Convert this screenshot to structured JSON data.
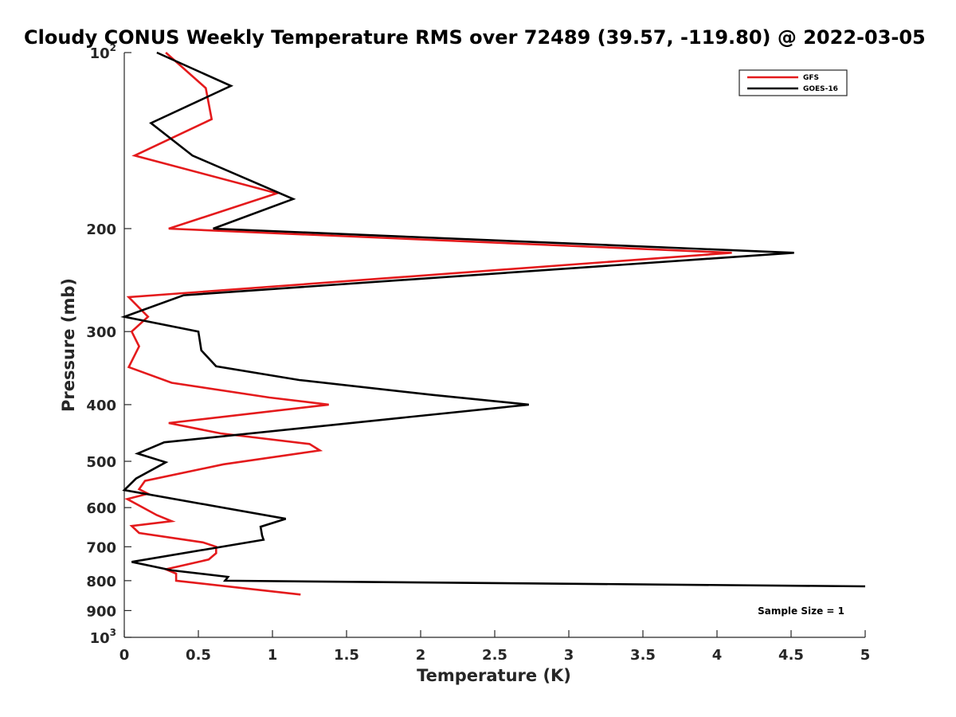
{
  "chart_data": {
    "type": "line",
    "title": "Cloudy CONUS Weekly Temperature RMS over 72489 (39.57, -119.80) @ 2022-03-05",
    "xlabel": "Temperature (K)",
    "ylabel": "Pressure (mb)",
    "xlim": [
      0,
      5
    ],
    "ylim": [
      100,
      1000
    ],
    "yscale": "log",
    "y_reversed": true,
    "x_ticks": [
      {
        "value": 0,
        "label": "0"
      },
      {
        "value": 0.5,
        "label": "0.5"
      },
      {
        "value": 1,
        "label": "1"
      },
      {
        "value": 1.5,
        "label": "1.5"
      },
      {
        "value": 2,
        "label": "2"
      },
      {
        "value": 2.5,
        "label": "2.5"
      },
      {
        "value": 3,
        "label": "3"
      },
      {
        "value": 3.5,
        "label": "3.5"
      },
      {
        "value": 4,
        "label": "4"
      },
      {
        "value": 4.5,
        "label": "4.5"
      },
      {
        "value": 5,
        "label": "5"
      }
    ],
    "y_ticks": [
      {
        "value": 100,
        "base": "10",
        "exp": "2"
      },
      {
        "value": 200,
        "label": "200"
      },
      {
        "value": 300,
        "label": "300"
      },
      {
        "value": 400,
        "label": "400"
      },
      {
        "value": 500,
        "label": "500"
      },
      {
        "value": 600,
        "label": "600"
      },
      {
        "value": 700,
        "label": "700"
      },
      {
        "value": 800,
        "label": "800"
      },
      {
        "value": 900,
        "label": "900"
      },
      {
        "value": 1000,
        "base": "10",
        "exp": "3"
      }
    ],
    "grid": false,
    "legend_position": "top-right",
    "series": [
      {
        "name": "GFS",
        "color": "#e41a1c",
        "points": [
          [
            0.28,
            100
          ],
          [
            0.55,
            115
          ],
          [
            0.59,
            130
          ],
          [
            0.07,
            150
          ],
          [
            1.03,
            174
          ],
          [
            0.3,
            200
          ],
          [
            4.1,
            220
          ],
          [
            0.03,
            262
          ],
          [
            0.16,
            283
          ],
          [
            0.05,
            300
          ],
          [
            0.1,
            318
          ],
          [
            0.03,
            345
          ],
          [
            0.32,
            367
          ],
          [
            0.98,
            389
          ],
          [
            1.38,
            400
          ],
          [
            0.3,
            430
          ],
          [
            0.65,
            448
          ],
          [
            1.25,
            467
          ],
          [
            1.32,
            479
          ],
          [
            0.67,
            506
          ],
          [
            0.14,
            540
          ],
          [
            0.1,
            558
          ],
          [
            0.16,
            568
          ],
          [
            0.02,
            580
          ],
          [
            0.22,
            618
          ],
          [
            0.32,
            633
          ],
          [
            0.05,
            645
          ],
          [
            0.1,
            663
          ],
          [
            0.53,
            688
          ],
          [
            0.62,
            700
          ],
          [
            0.62,
            718
          ],
          [
            0.57,
            736
          ],
          [
            0.28,
            765
          ],
          [
            0.35,
            778
          ],
          [
            0.35,
            800
          ],
          [
            1.19,
            845
          ]
        ]
      },
      {
        "name": "GOES-16",
        "color": "#000000",
        "points": [
          [
            0.22,
            100
          ],
          [
            0.72,
            114
          ],
          [
            0.18,
            132
          ],
          [
            0.46,
            150
          ],
          [
            1.14,
            178
          ],
          [
            0.6,
            200
          ],
          [
            4.52,
            220
          ],
          [
            0.4,
            260
          ],
          [
            0.0,
            283
          ],
          [
            0.5,
            300
          ],
          [
            0.52,
            323
          ],
          [
            0.62,
            344
          ],
          [
            1.18,
            363
          ],
          [
            2.08,
            385
          ],
          [
            2.73,
            400
          ],
          [
            0.27,
            464
          ],
          [
            0.09,
            485
          ],
          [
            0.28,
            502
          ],
          [
            0.08,
            535
          ],
          [
            0.0,
            560
          ],
          [
            1.09,
            627
          ],
          [
            0.92,
            647
          ],
          [
            0.93,
            670
          ],
          [
            0.94,
            681
          ],
          [
            0.05,
            743
          ],
          [
            0.32,
            768
          ],
          [
            0.7,
            788
          ],
          [
            0.68,
            800
          ],
          [
            5.0,
            818
          ]
        ]
      }
    ],
    "annotations": [
      "Sample Size = 1"
    ]
  }
}
